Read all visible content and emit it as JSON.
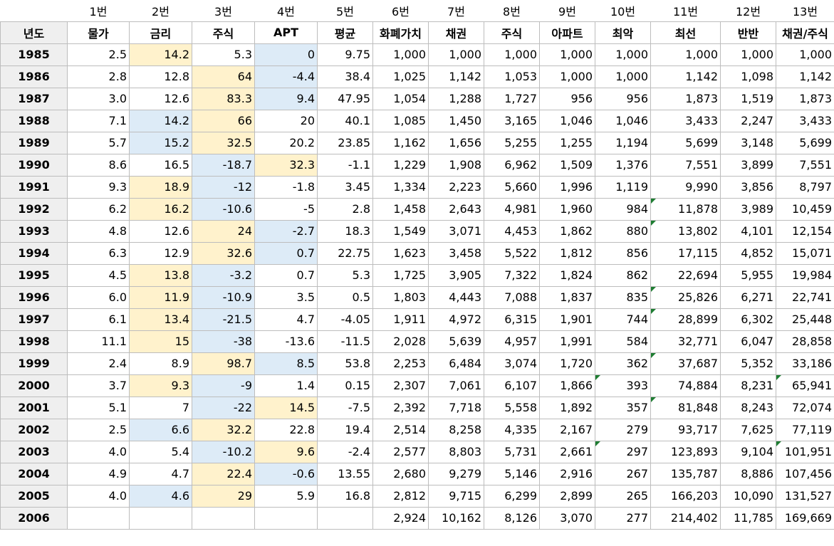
{
  "column_numbers": [
    "",
    "1번",
    "2번",
    "3번",
    "4번",
    "5번",
    "6번",
    "7번",
    "8번",
    "9번",
    "10번",
    "11번",
    "12번",
    "13번"
  ],
  "headers": [
    "년도",
    "물가",
    "금리",
    "주식",
    "APT",
    "평균",
    "화폐가치",
    "채권",
    "주식",
    "아파트",
    "최악",
    "최선",
    "반반",
    "채권/주식"
  ],
  "highlight_colors": {
    "high": "#fff2cc",
    "low": "#ddebf7",
    "comment_marker": "#1e7d32"
  },
  "rows": [
    {
      "year": "1985",
      "cells": [
        "2.5",
        "14.2",
        "5.3",
        "0",
        "9.75",
        "1,000",
        "1,000",
        "1,000",
        "1,000",
        "1,000",
        "1,000",
        "1,000",
        "1,000"
      ],
      "hl": [
        "",
        "y",
        "",
        "b",
        "",
        "",
        "",
        "",
        "",
        "",
        "",
        "",
        ""
      ],
      "tri": []
    },
    {
      "year": "1986",
      "cells": [
        "2.8",
        "12.8",
        "64",
        "-4.4",
        "38.4",
        "1,025",
        "1,142",
        "1,053",
        "1,000",
        "1,000",
        "1,142",
        "1,098",
        "1,142"
      ],
      "hl": [
        "",
        "",
        "y",
        "b",
        "",
        "",
        "",
        "",
        "",
        "",
        "",
        "",
        ""
      ],
      "tri": []
    },
    {
      "year": "1987",
      "cells": [
        "3.0",
        "12.6",
        "83.3",
        "9.4",
        "47.95",
        "1,054",
        "1,288",
        "1,727",
        "956",
        "956",
        "1,873",
        "1,519",
        "1,873"
      ],
      "hl": [
        "",
        "",
        "y",
        "b",
        "",
        "",
        "",
        "",
        "",
        "",
        "",
        "",
        ""
      ],
      "tri": []
    },
    {
      "year": "1988",
      "cells": [
        "7.1",
        "14.2",
        "66",
        "20",
        "40.1",
        "1,085",
        "1,450",
        "3,165",
        "1,046",
        "1,046",
        "3,433",
        "2,247",
        "3,433"
      ],
      "hl": [
        "",
        "b",
        "y",
        "",
        "",
        "",
        "",
        "",
        "",
        "",
        "",
        "",
        ""
      ],
      "tri": []
    },
    {
      "year": "1989",
      "cells": [
        "5.7",
        "15.2",
        "32.5",
        "20.2",
        "23.85",
        "1,162",
        "1,656",
        "5,255",
        "1,255",
        "1,194",
        "5,699",
        "3,148",
        "5,699"
      ],
      "hl": [
        "",
        "b",
        "y",
        "",
        "",
        "",
        "",
        "",
        "",
        "",
        "",
        "",
        ""
      ],
      "tri": []
    },
    {
      "year": "1990",
      "cells": [
        "8.6",
        "16.5",
        "-18.7",
        "32.3",
        "-1.1",
        "1,229",
        "1,908",
        "6,962",
        "1,509",
        "1,376",
        "7,551",
        "3,899",
        "7,551"
      ],
      "hl": [
        "",
        "",
        "b",
        "y",
        "",
        "",
        "",
        "",
        "",
        "",
        "",
        "",
        ""
      ],
      "tri": []
    },
    {
      "year": "1991",
      "cells": [
        "9.3",
        "18.9",
        "-12",
        "-1.8",
        "3.45",
        "1,334",
        "2,223",
        "5,660",
        "1,996",
        "1,119",
        "9,990",
        "3,856",
        "8,797"
      ],
      "hl": [
        "",
        "y",
        "b",
        "",
        "",
        "",
        "",
        "",
        "",
        "",
        "",
        "",
        ""
      ],
      "tri": []
    },
    {
      "year": "1992",
      "cells": [
        "6.2",
        "16.2",
        "-10.6",
        "-5",
        "2.8",
        "1,458",
        "2,643",
        "4,981",
        "1,960",
        "984",
        "11,878",
        "3,989",
        "10,459"
      ],
      "hl": [
        "",
        "y",
        "b",
        "",
        "",
        "",
        "",
        "",
        "",
        "",
        "",
        "",
        ""
      ],
      "tri": [
        10
      ]
    },
    {
      "year": "1993",
      "cells": [
        "4.8",
        "12.6",
        "24",
        "-2.7",
        "18.3",
        "1,549",
        "3,071",
        "4,453",
        "1,862",
        "880",
        "13,802",
        "4,101",
        "12,154"
      ],
      "hl": [
        "",
        "",
        "y",
        "b",
        "",
        "",
        "",
        "",
        "",
        "",
        "",
        "",
        ""
      ],
      "tri": [
        10
      ]
    },
    {
      "year": "1994",
      "cells": [
        "6.3",
        "12.9",
        "32.6",
        "0.7",
        "22.75",
        "1,623",
        "3,458",
        "5,522",
        "1,812",
        "856",
        "17,115",
        "4,852",
        "15,071"
      ],
      "hl": [
        "",
        "",
        "y",
        "b",
        "",
        "",
        "",
        "",
        "",
        "",
        "",
        "",
        ""
      ],
      "tri": []
    },
    {
      "year": "1995",
      "cells": [
        "4.5",
        "13.8",
        "-3.2",
        "0.7",
        "5.3",
        "1,725",
        "3,905",
        "7,322",
        "1,824",
        "862",
        "22,694",
        "5,955",
        "19,984"
      ],
      "hl": [
        "",
        "y",
        "b",
        "",
        "",
        "",
        "",
        "",
        "",
        "",
        "",
        "",
        ""
      ],
      "tri": []
    },
    {
      "year": "1996",
      "cells": [
        "6.0",
        "11.9",
        "-10.9",
        "3.5",
        "0.5",
        "1,803",
        "4,443",
        "7,088",
        "1,837",
        "835",
        "25,826",
        "6,271",
        "22,741"
      ],
      "hl": [
        "",
        "y",
        "b",
        "",
        "",
        "",
        "",
        "",
        "",
        "",
        "",
        "",
        ""
      ],
      "tri": [
        10
      ]
    },
    {
      "year": "1997",
      "cells": [
        "6.1",
        "13.4",
        "-21.5",
        "4.7",
        "-4.05",
        "1,911",
        "4,972",
        "6,315",
        "1,901",
        "744",
        "28,899",
        "6,302",
        "25,448"
      ],
      "hl": [
        "",
        "y",
        "b",
        "",
        "",
        "",
        "",
        "",
        "",
        "",
        "",
        "",
        ""
      ],
      "tri": [
        10
      ]
    },
    {
      "year": "1998",
      "cells": [
        "11.1",
        "15",
        "-38",
        "-13.6",
        "-11.5",
        "2,028",
        "5,639",
        "4,957",
        "1,991",
        "584",
        "32,771",
        "6,047",
        "28,858"
      ],
      "hl": [
        "",
        "y",
        "b",
        "",
        "",
        "",
        "",
        "",
        "",
        "",
        "",
        "",
        ""
      ],
      "tri": []
    },
    {
      "year": "1999",
      "cells": [
        "2.4",
        "8.9",
        "98.7",
        "8.5",
        "53.8",
        "2,253",
        "6,484",
        "3,074",
        "1,720",
        "362",
        "37,687",
        "5,352",
        "33,186"
      ],
      "hl": [
        "",
        "",
        "y",
        "b",
        "",
        "",
        "",
        "",
        "",
        "",
        "",
        "",
        ""
      ],
      "tri": [
        10
      ]
    },
    {
      "year": "2000",
      "cells": [
        "3.7",
        "9.3",
        "-9",
        "1.4",
        "0.15",
        "2,307",
        "7,061",
        "6,107",
        "1,866",
        "393",
        "74,884",
        "8,231",
        "65,941"
      ],
      "hl": [
        "",
        "y",
        "b",
        "",
        "",
        "",
        "",
        "",
        "",
        "",
        "",
        "",
        ""
      ],
      "tri": [
        9,
        12
      ]
    },
    {
      "year": "2001",
      "cells": [
        "5.1",
        "7",
        "-22",
        "14.5",
        "-7.5",
        "2,392",
        "7,718",
        "5,558",
        "1,892",
        "357",
        "81,848",
        "8,243",
        "72,074"
      ],
      "hl": [
        "",
        "",
        "b",
        "y",
        "",
        "",
        "",
        "",
        "",
        "",
        "",
        "",
        ""
      ],
      "tri": [
        10
      ]
    },
    {
      "year": "2002",
      "cells": [
        "2.5",
        "6.6",
        "32.2",
        "22.8",
        "19.4",
        "2,514",
        "8,258",
        "4,335",
        "2,167",
        "279",
        "93,717",
        "7,625",
        "77,119"
      ],
      "hl": [
        "",
        "b",
        "y",
        "",
        "",
        "",
        "",
        "",
        "",
        "",
        "",
        "",
        ""
      ],
      "tri": []
    },
    {
      "year": "2003",
      "cells": [
        "4.0",
        "5.4",
        "-10.2",
        "9.6",
        "-2.4",
        "2,577",
        "8,803",
        "5,731",
        "2,661",
        "297",
        "123,893",
        "9,104",
        "101,951"
      ],
      "hl": [
        "",
        "",
        "b",
        "y",
        "",
        "",
        "",
        "",
        "",
        "",
        "",
        "",
        ""
      ],
      "tri": [
        9,
        12
      ]
    },
    {
      "year": "2004",
      "cells": [
        "4.9",
        "4.7",
        "22.4",
        "-0.6",
        "13.55",
        "2,680",
        "9,279",
        "5,146",
        "2,916",
        "267",
        "135,787",
        "8,886",
        "107,456"
      ],
      "hl": [
        "",
        "",
        "y",
        "b",
        "",
        "",
        "",
        "",
        "",
        "",
        "",
        "",
        ""
      ],
      "tri": []
    },
    {
      "year": "2005",
      "cells": [
        "4.0",
        "4.6",
        "29",
        "5.9",
        "16.8",
        "2,812",
        "9,715",
        "6,299",
        "2,899",
        "265",
        "166,203",
        "10,090",
        "131,527"
      ],
      "hl": [
        "",
        "b",
        "y",
        "",
        "",
        "",
        "",
        "",
        "",
        "",
        "",
        "",
        ""
      ],
      "tri": []
    },
    {
      "year": "2006",
      "cells": [
        "",
        "",
        "",
        "",
        "",
        "2,924",
        "10,162",
        "8,126",
        "3,070",
        "277",
        "214,402",
        "11,785",
        "169,669"
      ],
      "hl": [
        "",
        "",
        "",
        "",
        "",
        "",
        "",
        "",
        "",
        "",
        "",
        "",
        ""
      ],
      "tri": []
    }
  ]
}
